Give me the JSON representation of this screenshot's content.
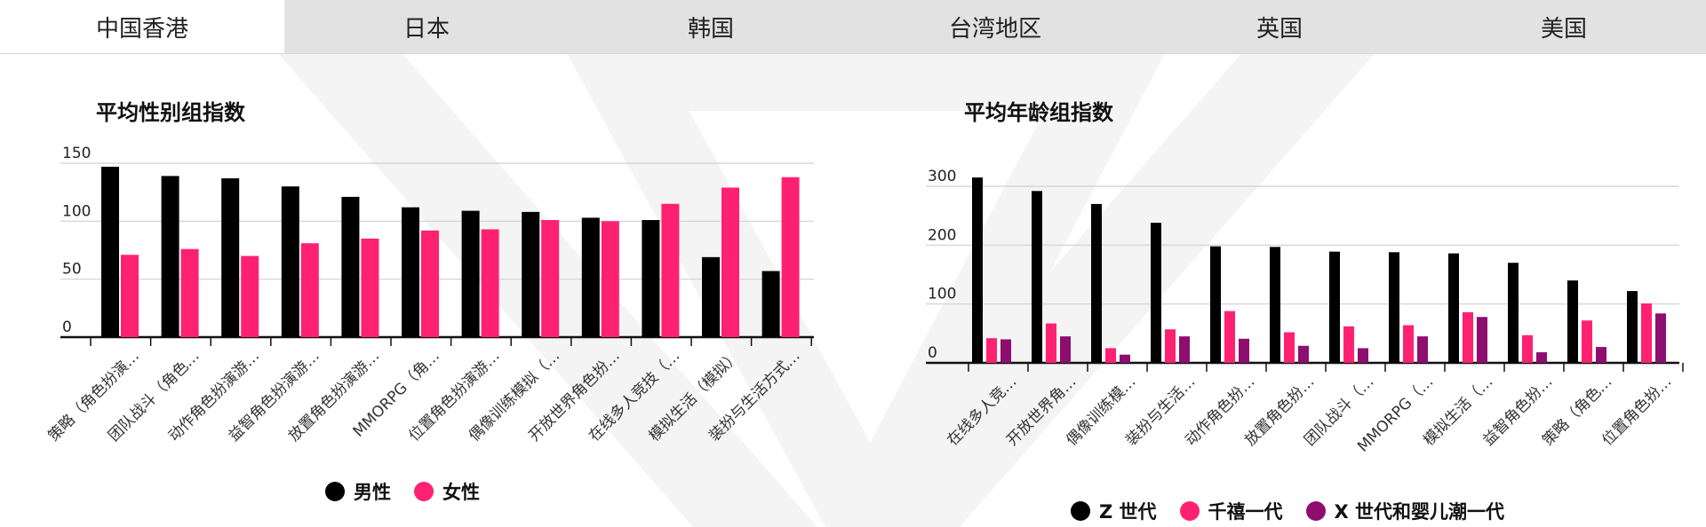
{
  "tabs": [
    {
      "label": "中国香港",
      "active": true
    },
    {
      "label": "日本",
      "active": false
    },
    {
      "label": "韩国",
      "active": false
    },
    {
      "label": "台湾地区",
      "active": false
    },
    {
      "label": "英国",
      "active": false
    },
    {
      "label": "美国",
      "active": false
    }
  ],
  "chart_data": [
    {
      "type": "bar",
      "title": "平均性别组指数",
      "ylim": [
        0,
        150
      ],
      "yticks": [
        0,
        50,
        100,
        150
      ],
      "grid": true,
      "legend_position": "bottom",
      "categories": [
        "策略（角色扮演…",
        "团队战斗（角色…",
        "动作角色扮演游…",
        "益智角色扮演游…",
        "放置角色扮演游…",
        "MMORPG（角…",
        "位置角色扮演游…",
        "偶像训练模拟（…",
        "开放世界角色扮…",
        "在线多人竞技（…",
        "模拟生活（模拟）",
        "装扮与生活方式…"
      ],
      "series": [
        {
          "name": "男性",
          "color": "#000000",
          "values": [
            147,
            139,
            137,
            130,
            121,
            112,
            109,
            108,
            103,
            101,
            69,
            57
          ]
        },
        {
          "name": "女性",
          "color": "#ff2171",
          "values": [
            71,
            76,
            70,
            81,
            85,
            92,
            93,
            101,
            100,
            115,
            129,
            138
          ]
        }
      ]
    },
    {
      "type": "bar",
      "title": "平均年龄组指数",
      "ylim": [
        0,
        300
      ],
      "yticks": [
        0,
        100,
        200,
        300
      ],
      "grid": true,
      "legend_position": "bottom",
      "categories": [
        "在线多人竞…",
        "开放世界角…",
        "偶像训练模…",
        "装扮与生活…",
        "动作角色扮…",
        "放置角色扮…",
        "团队战斗（…",
        "MMORPG（…",
        "模拟生活（…",
        "益智角色扮…",
        "策略（角色…",
        "位置角色扮…"
      ],
      "series": [
        {
          "name": "Z 世代",
          "color": "#000000",
          "values": [
            315,
            292,
            270,
            238,
            198,
            197,
            189,
            188,
            186,
            170,
            140,
            122
          ]
        },
        {
          "name": "千禧一代",
          "color": "#ff2171",
          "values": [
            42,
            67,
            25,
            57,
            88,
            52,
            62,
            64,
            86,
            47,
            72,
            101
          ]
        },
        {
          "name": "X 世代和婴儿潮一代",
          "color": "#8e0e70",
          "values": [
            40,
            45,
            14,
            45,
            41,
            29,
            25,
            45,
            78,
            18,
            27,
            84
          ]
        }
      ]
    }
  ]
}
